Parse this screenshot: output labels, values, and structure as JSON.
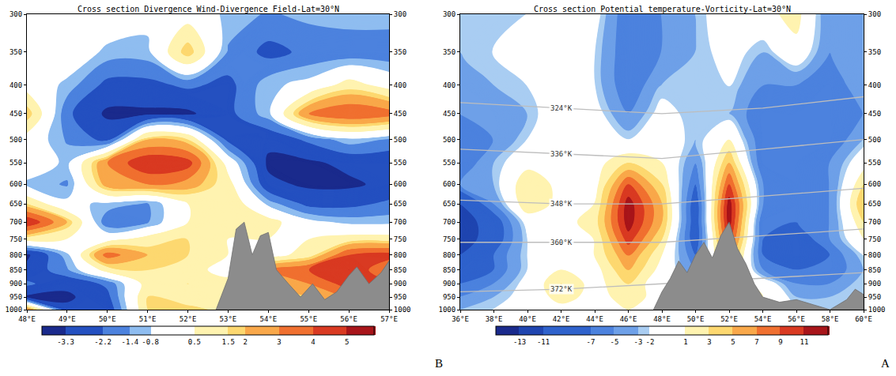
{
  "chart_data": [
    {
      "type": "contour",
      "title": "Cross section Divergence Wind-Divergence Field-Lat=30°N",
      "letter": "B",
      "x": [
        48,
        49,
        50,
        51,
        52,
        53,
        54,
        55,
        56,
        57
      ],
      "y": [
        300,
        350,
        400,
        450,
        500,
        550,
        600,
        650,
        700,
        750,
        800,
        850,
        900,
        950,
        1000
      ],
      "z": [
        [
          0,
          0,
          0,
          -0.5,
          0,
          -1,
          -1.5,
          -1.2,
          -1,
          -1
        ],
        [
          0,
          0,
          -1,
          -1,
          2,
          -1.5,
          -2.5,
          -2,
          -2,
          -2
        ],
        [
          0,
          -1,
          -2.5,
          -2.5,
          -2,
          -2.5,
          -1,
          -0.5,
          1,
          0
        ],
        [
          2,
          -2,
          -3.5,
          -3.5,
          -3.5,
          -2.5,
          -1,
          3,
          4,
          3.5
        ],
        [
          0,
          -1.5,
          -2.5,
          2,
          1.5,
          -2.5,
          -3,
          -2,
          -1,
          -1.5
        ],
        [
          0,
          -1,
          3,
          5,
          4.5,
          0,
          -3.5,
          -3.5,
          -3,
          -3
        ],
        [
          -1,
          -1.5,
          2.5,
          3,
          2.5,
          1,
          -3,
          -3.5,
          -3.5,
          -3
        ],
        [
          1.5,
          -0.5,
          -1,
          -1.5,
          0.5,
          1.5,
          -1,
          -2.5,
          -2.5,
          -2
        ],
        [
          5,
          2,
          -2,
          -1.5,
          0.5,
          1.5,
          1,
          -0.5,
          -1,
          -1
        ],
        [
          1,
          0.5,
          0,
          1,
          1.5,
          0.5,
          0.5,
          0.5,
          1,
          1
        ],
        [
          -3.5,
          -1,
          3.5,
          2,
          1.5,
          0.5,
          0,
          1,
          4,
          4.5
        ],
        [
          -3,
          -1.5,
          1,
          1.5,
          1,
          0,
          3,
          4,
          5,
          3
        ],
        [
          -2,
          -3,
          -2,
          1,
          1.5,
          1,
          2,
          3,
          4.5,
          4
        ],
        [
          -3.5,
          -3.5,
          -2.5,
          1.5,
          0.5,
          1.5,
          1,
          2,
          3,
          3
        ],
        [
          3,
          -3,
          -3,
          1.5,
          2,
          1,
          1,
          1.5,
          2,
          2
        ]
      ],
      "xlim": [
        48,
        57
      ],
      "xticks": [
        {
          "value": 48,
          "label": "48°E"
        },
        {
          "value": 49,
          "label": "49°E"
        },
        {
          "value": 50,
          "label": "50°E"
        },
        {
          "value": 51,
          "label": "51°E"
        },
        {
          "value": 52,
          "label": "52°E"
        },
        {
          "value": 53,
          "label": "53°E"
        },
        {
          "value": 54,
          "label": "54°E"
        },
        {
          "value": 55,
          "label": "55°E"
        },
        {
          "value": 56,
          "label": "56°E"
        },
        {
          "value": 57,
          "label": "57°E"
        }
      ],
      "ylim": [
        1000,
        300
      ],
      "yticks": [
        300,
        350,
        400,
        450,
        500,
        550,
        600,
        650,
        700,
        750,
        800,
        850,
        900,
        950,
        1000
      ],
      "log": "y",
      "grid": false,
      "colorbar": {
        "range": [
          -4,
          5.8
        ],
        "ticks": [
          -3.3,
          -2.2,
          -1.4,
          -0.8,
          0.5,
          1.5,
          2,
          3,
          4,
          5
        ],
        "colors": [
          "#1a2a8c",
          "#2450c0",
          "#4c82de",
          "#8fbdf0",
          "#ffffff",
          "#fff3b0",
          "#fdd870",
          "#f9a84a",
          "#f07030",
          "#d93a22",
          "#a8151a"
        ]
      },
      "terrain": {
        "x": [
          52.7,
          53.0,
          53.2,
          53.4,
          53.6,
          53.8,
          54.0,
          54.2,
          54.5,
          54.8,
          55.1,
          55.4,
          55.7,
          56.0,
          56.2,
          56.5,
          56.8,
          57.0
        ],
        "pressure": [
          1000,
          880,
          720,
          700,
          800,
          740,
          730,
          850,
          900,
          950,
          900,
          960,
          930,
          870,
          840,
          900,
          860,
          820
        ]
      }
    },
    {
      "type": "contour",
      "title": "Cross section Potential temperature-Vorticity-Lat=30°N",
      "letter": "A",
      "x": [
        36,
        38,
        40,
        42,
        44,
        46,
        48,
        50,
        52,
        54,
        56,
        58,
        60
      ],
      "y": [
        300,
        350,
        400,
        450,
        500,
        550,
        600,
        650,
        700,
        750,
        800,
        850,
        900,
        950,
        1000
      ],
      "z": [
        [
          -3,
          -3,
          -2,
          0,
          -1,
          -7,
          -5,
          -3,
          0,
          0,
          2,
          -5,
          -3
        ],
        [
          -3,
          -2,
          -1,
          0,
          -2,
          -7,
          -5,
          -3,
          -1,
          -3,
          0,
          -5,
          -3
        ],
        [
          -5,
          -3,
          -2,
          0,
          -2,
          -7,
          -3,
          -3,
          -2,
          -5,
          -5,
          -7,
          -3
        ],
        [
          -5,
          -5,
          -3,
          0,
          -1,
          -5,
          -1,
          -3,
          -3,
          -7,
          -7,
          -7,
          -5
        ],
        [
          -7,
          -5,
          -2,
          0,
          -1,
          -2,
          0,
          -3,
          1,
          -7,
          -7,
          -7,
          -3
        ],
        [
          -7,
          -3,
          0,
          0,
          0,
          3,
          1,
          -5,
          5,
          -7,
          -7,
          -5,
          0
        ],
        [
          -5,
          -3,
          3,
          0,
          0,
          9,
          3,
          -7,
          9,
          -5,
          -7,
          -5,
          3
        ],
        [
          -11,
          -5,
          3,
          0,
          1,
          12,
          5,
          -9,
          12,
          -5,
          -7,
          -5,
          5
        ],
        [
          -13,
          -9,
          -1,
          0,
          2,
          12,
          5,
          -9,
          12,
          -7,
          -7,
          -5,
          3
        ],
        [
          -13,
          -9,
          -2,
          0,
          1,
          10,
          3,
          -9,
          10,
          -7,
          -9,
          -5,
          1
        ],
        [
          -11,
          -7,
          -2,
          0,
          1,
          7,
          1,
          -7,
          7,
          -7,
          -9,
          -7,
          -2
        ],
        [
          -9,
          -7,
          -2,
          1,
          0,
          5,
          0,
          -5,
          5,
          -5,
          -7,
          -7,
          -3
        ],
        [
          -7,
          -5,
          -1,
          3,
          0,
          3,
          -1,
          -3,
          3,
          0,
          -5,
          -5,
          -2
        ],
        [
          -5,
          -3,
          -1,
          2,
          0,
          2,
          0,
          -2,
          3,
          1,
          -3,
          -3,
          -2
        ],
        [
          -3,
          -2,
          0,
          0,
          0,
          1,
          0,
          0,
          0,
          0,
          -2,
          -2,
          -2
        ]
      ],
      "xlim": [
        36,
        60
      ],
      "xticks": [
        {
          "value": 36,
          "label": "36°E"
        },
        {
          "value": 38,
          "label": "38°E"
        },
        {
          "value": 40,
          "label": "40°E"
        },
        {
          "value": 42,
          "label": "42°E"
        },
        {
          "value": 44,
          "label": "44°E"
        },
        {
          "value": 46,
          "label": "46°E"
        },
        {
          "value": 48,
          "label": "48°E"
        },
        {
          "value": 50,
          "label": "50°E"
        },
        {
          "value": 52,
          "label": "52°E"
        },
        {
          "value": 54,
          "label": "54°E"
        },
        {
          "value": 56,
          "label": "56°E"
        },
        {
          "value": 58,
          "label": "58°E"
        },
        {
          "value": 60,
          "label": "60°E"
        }
      ],
      "ylim": [
        1000,
        300
      ],
      "yticks": [
        300,
        350,
        400,
        450,
        500,
        550,
        600,
        650,
        700,
        750,
        800,
        850,
        900,
        950,
        1000
      ],
      "log": "y",
      "grid": false,
      "colorbar": {
        "range": [
          -15,
          13
        ],
        "ticks": [
          -13,
          -11,
          -7,
          -5,
          -3,
          -2,
          1,
          3,
          5,
          7,
          9,
          11
        ],
        "colors": [
          "#1a2a8c",
          "#1f45b0",
          "#2f62cc",
          "#4c82de",
          "#6ea0e8",
          "#a9cdf2",
          "#ffffff",
          "#fff3b0",
          "#fdd870",
          "#f9a84a",
          "#f07030",
          "#d93a22",
          "#a8151a"
        ]
      },
      "terrain": {
        "x": [
          47.5,
          48,
          48.5,
          49,
          49.5,
          50,
          50.5,
          51,
          51.5,
          52,
          52.5,
          53,
          53.5,
          54,
          55,
          56,
          57,
          58,
          59,
          59.5,
          60
        ],
        "pressure": [
          1000,
          930,
          880,
          820,
          860,
          800,
          760,
          810,
          740,
          700,
          780,
          830,
          900,
          950,
          970,
          960,
          980,
          1000,
          960,
          920,
          940
        ]
      },
      "isentropes": {
        "x": [
          36,
          42,
          48,
          54,
          60
        ],
        "lines": [
          {
            "label": "324°K",
            "pressure": [
              430,
              440,
              450,
              440,
              420
            ]
          },
          {
            "label": "336°K",
            "pressure": [
              520,
              530,
              540,
              520,
              500
            ]
          },
          {
            "label": "348°K",
            "pressure": [
              640,
              650,
              650,
              630,
              610
            ]
          },
          {
            "label": "360°K",
            "pressure": [
              760,
              760,
              760,
              740,
              720
            ]
          },
          {
            "label": "372°K",
            "pressure": [
              930,
              920,
              900,
              880,
              860
            ]
          }
        ]
      }
    }
  ]
}
